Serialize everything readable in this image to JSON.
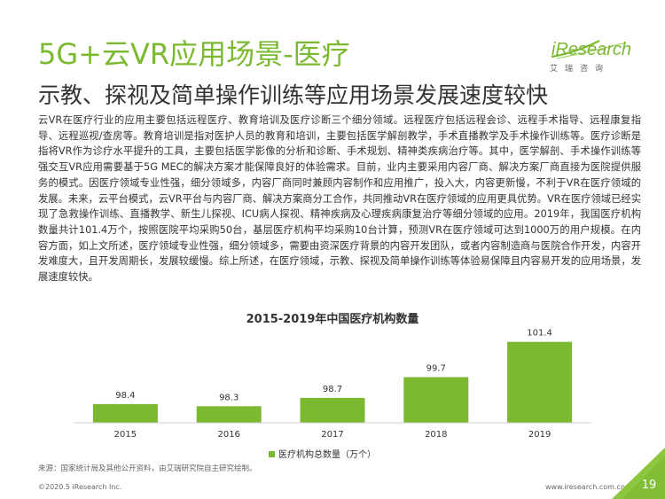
{
  "header": {
    "title": "5G+云VR应用场景-医疗",
    "subtitle": "示教、探视及简单操作训练等应用场景发展速度较快"
  },
  "logo": {
    "name": "iResearch",
    "tagline": "艾瑞咨询"
  },
  "body_text": "云VR在医疗行业的应用主要包括远程医疗、教育培训及医疗诊断三个细分领域。远程医疗包括远程会诊、远程手术指导、远程康复指导、远程巡视/查房等。教育培训是指对医护人员的教育和培训，主要包括医学解剖教学，手术直播教学及手术操作训练等。医疗诊断是指将VR作为诊疗水平提升的工具，主要包括医学影像的分析和诊断、手术规划、精神类疾病治疗等。其中，医学解剖、手术操作训练等强交互VR应用需要基于5G MEC的解决方案才能保障良好的体验需求。目前，业内主要采用内容厂商、解决方案厂商直接为医院提供服务的模式。因医疗领域专业性强，细分领域多，内容厂商同时兼顾内容制作和应用推广，投入大，内容更新慢，不利于VR在医疗领域的发展。未来，云平台模式，云VR平台与内容厂商、解决方案商分工合作，共同推动VR在医疗领域的应用更具优势。VR在医疗领域已经实现了急救操作训练、直播教学、新生儿探视、ICU病人探视、精神疾病及心理疾病康复治疗等细分领域的应用。2019年，我国医疗机构数量共计101.4万个，按照医院平均采购50台，基层医疗机构平均采购10台计算，预测VR在医疗领域可达到1000万的用户规模。在内容方面，如上文所述，医疗领域专业性强，细分领域多，需要由资深医疗背景的内容开发团队，或者内容制造商与医院合作开发，内容开发难度大，且开发周期长，发展较缓慢。综上所述，在医疗领域，示教、探视及简单操作训练等体验易保障且内容易开发的应用场景，发展速度较快。",
  "chart_data": {
    "type": "bar",
    "title": "2015-2019年中国医疗机构数量",
    "categories": [
      "2015",
      "2016",
      "2017",
      "2018",
      "2019"
    ],
    "series": [
      {
        "name": "医疗机构总数量（万个）",
        "values": [
          98.4,
          98.3,
          98.7,
          99.7,
          101.4
        ]
      }
    ],
    "value_labels": [
      "98.4",
      "98.3",
      "98.7",
      "99.7",
      "101.4"
    ],
    "legend": "bottom",
    "grid": false,
    "ylim": [
      97.5,
      101.9
    ]
  },
  "source_text": "来源：国家统计局及其他公开资料，由艾瑞研究院自主研究绘制。",
  "footer": {
    "copyright": "©2020.5 iResearch Inc.",
    "website": "www.iresearch.com.cn",
    "page_number": "19"
  },
  "colors": {
    "accent": "#7ab930",
    "bar": "#7ab930",
    "corner": "#8cc63f"
  }
}
